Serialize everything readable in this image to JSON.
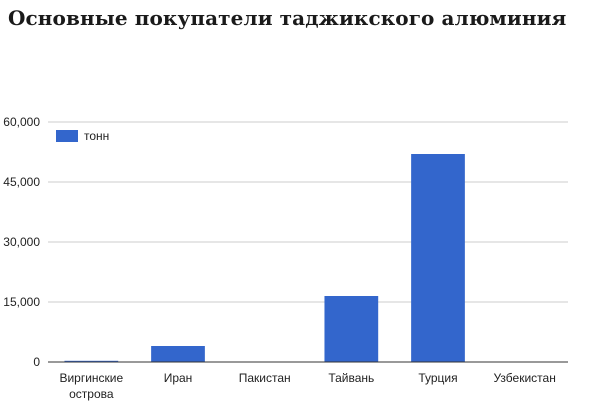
{
  "chart_data": {
    "type": "bar",
    "title": "Основные покупатели таджикского алюминия",
    "xlabel": "",
    "ylabel": "",
    "categories": [
      [
        "Виргинские",
        "острова"
      ],
      [
        "Иран"
      ],
      [
        "Пакистан"
      ],
      [
        "Тайвань"
      ],
      [
        "Турция"
      ],
      [
        "Узбекистан"
      ]
    ],
    "series": [
      {
        "name": "тонн",
        "values": [
          300,
          4000,
          0,
          16500,
          52000,
          0
        ],
        "color": "#3366cc"
      }
    ],
    "ylim": [
      0,
      60000
    ],
    "yticks": [
      0,
      15000,
      30000,
      45000,
      60000
    ],
    "ytick_labels": [
      "0",
      "15,000",
      "30,000",
      "45,000",
      "60,000"
    ],
    "grid": true,
    "legend": "top-left"
  }
}
